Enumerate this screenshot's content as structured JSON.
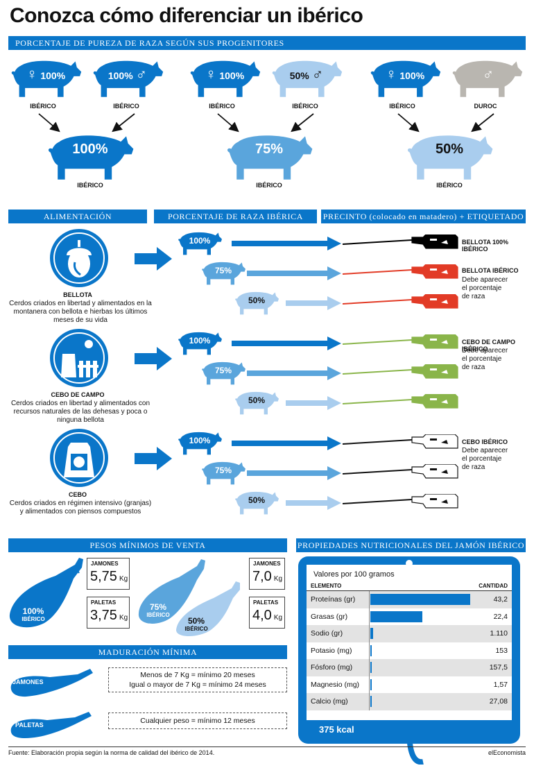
{
  "title": "Conozca cómo diferenciar un ibérico",
  "pureza": {
    "header": "PORCENTAJE DE PUREZA DE RAZA SEGÚN SUS PROGENITORES",
    "groups": [
      {
        "female_pct": "100%",
        "male_pct": "100%",
        "female_label": "IBÉRICO",
        "male_label": "IBÉRICO",
        "child_pct": "100%",
        "child_label": "IBÉRICO",
        "female_symbol": "♀",
        "male_symbol": "♂"
      },
      {
        "female_pct": "100%",
        "male_pct": "50%",
        "female_label": "IBÉRICO",
        "male_label": "IBÉRICO",
        "child_pct": "75%",
        "child_label": "IBÉRICO",
        "female_symbol": "♀",
        "male_symbol": "♂"
      },
      {
        "female_pct": "100%",
        "male_pct": "",
        "female_label": "IBÉRICO",
        "male_label": "DUROC",
        "child_pct": "50%",
        "child_label": "IBÉRICO",
        "female_symbol": "♀",
        "male_symbol": "♂"
      }
    ]
  },
  "section2": {
    "col1": "ALIMENTACIÓN",
    "col2": "PORCENTAJE DE RAZA IBÉRICA",
    "col3": "PRECINTO (colocado en matadero) + ETIQUETADO",
    "categories": [
      {
        "name": "BELLOTA",
        "desc": "Cerdos criados en libertad y alimentados en la montanera con bellota e hierbas los últimos meses de su vida",
        "pcts": [
          "100%",
          "75%",
          "50%"
        ],
        "tag1": "BELLOTA 100% IBÉRICO",
        "tag2": "BELLOTA IBÉRICO",
        "tag2_note": "Debe aparecer el porcentaje de raza",
        "colors": [
          "#000000",
          "#e23b26",
          "#e23b26"
        ]
      },
      {
        "name": "CEBO DE CAMPO",
        "desc": "Cerdos criados en libertad y alimentados con recursos naturales de las dehesas y poca o ninguna bellota",
        "pcts": [
          "100%",
          "75%",
          "50%"
        ],
        "tag1": "CEBO DE CAMPO IBÉRICO",
        "tag2": "",
        "tag2_note": "Debe aparecer el porcentaje de raza",
        "colors": [
          "#8ab54a",
          "#8ab54a",
          "#8ab54a"
        ]
      },
      {
        "name": "CEBO",
        "desc": "Cerdos criados en régimen intensivo (granjas) y alimentados con piensos compuestos",
        "pcts": [
          "100%",
          "75%",
          "50%"
        ],
        "tag1": "CEBO IBÉRICO",
        "tag2": "",
        "tag2_note": "Debe aparecer el porcentaje de raza",
        "colors": [
          "#ffffff",
          "#ffffff",
          "#ffffff"
        ]
      }
    ]
  },
  "pesos": {
    "header": "PESOS MÍNIMOS DE VENTA",
    "left": {
      "ham_label": "100%",
      "ham_sub": "IBÉRICO",
      "jam_title": "JAMONES",
      "jam_value": "5,75",
      "jam_unit": "Kg",
      "pal_title": "PALETAS",
      "pal_value": "3,75",
      "pal_unit": "Kg"
    },
    "right": {
      "ham1_label": "75%",
      "ham1_sub": "IBÉRICO",
      "ham2_label": "50%",
      "ham2_sub": "IBÉRICO",
      "jam_title": "JAMONES",
      "jam_value": "7,0",
      "jam_unit": "Kg",
      "pal_title": "PALETAS",
      "pal_value": "4,0",
      "pal_unit": "Kg"
    }
  },
  "maduracion": {
    "header": "MADURACIÓN MÍNIMA",
    "jamones_label": "JAMONES",
    "jamones_line1": "Menos de 7 Kg = mínimo 20 meses",
    "jamones_line2": "Igual o mayor de 7 Kg = mínimo 24 meses",
    "paletas_label": "PALETAS",
    "paletas_line": "Cualquier peso = mínimo 12 meses"
  },
  "nutricion": {
    "header": "PROPIEDADES NUTRICIONALES DEL JAMÓN IBÉRICO",
    "subtitle": "Valores por 100 gramos",
    "col_elemento": "ELEMENTO",
    "col_cantidad": "CANTIDAD",
    "kcal": "375 kcal"
  },
  "chart_data": {
    "type": "bar",
    "title": "Valores por 100 gramos",
    "categories": [
      "Proteínas (gr)",
      "Grasas (gr)",
      "Sodio (gr)",
      "Potasio (mg)",
      "Fósforo (mg)",
      "Magnesio (mg)",
      "Calcio (mg)"
    ],
    "values": [
      43.2,
      22.4,
      1.11,
      153,
      157.5,
      1.57,
      27.08
    ],
    "value_labels": [
      "43,2",
      "22,4",
      "1.110",
      "153",
      "157,5",
      "1,57",
      "27,08"
    ],
    "bar_fraction": [
      1.0,
      0.52,
      0.026,
      0.004,
      0.004,
      0.004,
      0.004
    ],
    "series_color": "#0a76c9"
  },
  "footer": {
    "source": "Fuente: Elaboración propia según la norma de calidad del ibérico de 2014.",
    "brand": "elEconomista"
  },
  "colors": {
    "dark": "#0a76c9",
    "mid": "#5aa5dc",
    "light": "#a9cdee",
    "grey": "#b9b6b0"
  }
}
